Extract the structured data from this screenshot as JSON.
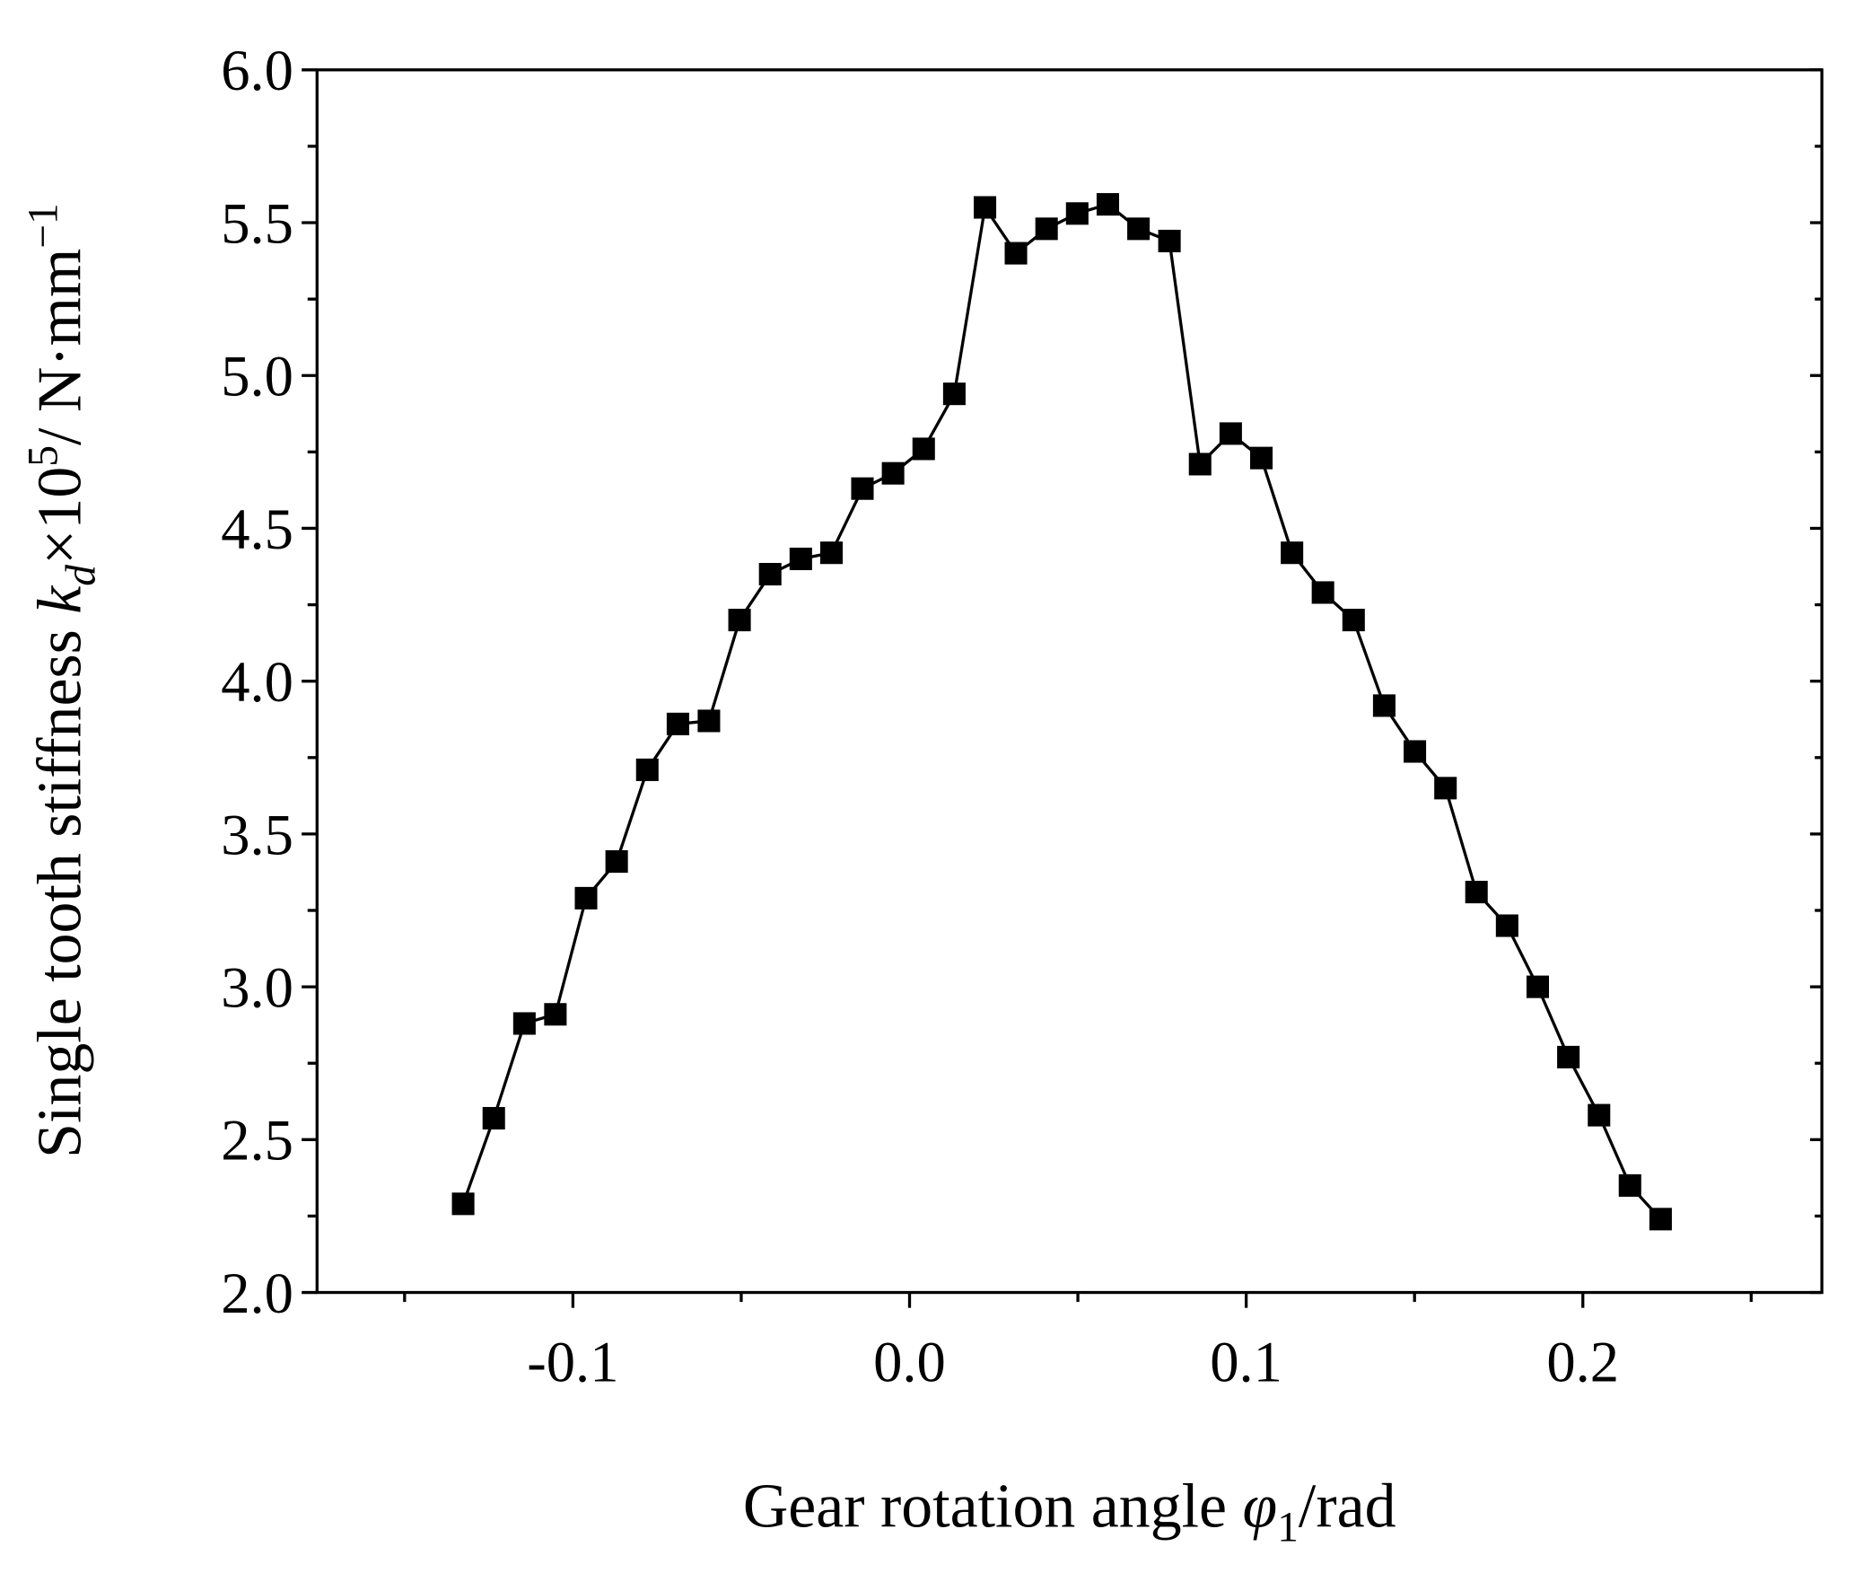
{
  "chart_data": {
    "type": "line",
    "x_label_parts": [
      "Gear rotation angle ",
      "φ",
      "1",
      "/rad"
    ],
    "y_label_parts": [
      "Single tooth stiffness ",
      "k",
      "d",
      "×10",
      "5",
      "/ N·mm",
      "−1"
    ],
    "x": [
      -0.1326,
      -0.1235,
      -0.1144,
      -0.1052,
      -0.0961,
      -0.087,
      -0.0779,
      -0.0688,
      -0.0596,
      -0.0505,
      -0.0414,
      -0.0323,
      -0.0232,
      -0.014,
      -0.0049,
      0.0042,
      0.0133,
      0.0224,
      0.0316,
      0.0407,
      0.0498,
      0.0589,
      0.068,
      0.0772,
      0.0863,
      0.0954,
      0.1045,
      0.1136,
      0.1228,
      0.1319,
      0.141,
      0.1501,
      0.1592,
      0.1684,
      0.1775,
      0.1866,
      0.1957,
      0.2048,
      0.214,
      0.2231
    ],
    "values": [
      2.29,
      2.57,
      2.88,
      2.91,
      3.29,
      3.41,
      3.71,
      3.86,
      3.87,
      4.2,
      4.35,
      4.4,
      4.42,
      4.63,
      4.68,
      4.76,
      4.94,
      5.55,
      5.4,
      5.48,
      5.53,
      5.56,
      5.48,
      5.44,
      4.71,
      4.81,
      4.73,
      4.42,
      4.29,
      4.2,
      3.92,
      3.77,
      3.65,
      3.31,
      3.2,
      3.0,
      2.77,
      2.58,
      2.35,
      2.24
    ],
    "color": "#000000",
    "marker": "square",
    "xlim": [
      -0.176,
      0.271
    ],
    "ylim": [
      2.0,
      6.0
    ],
    "xticks": [
      -0.1,
      {
        "value": 0,
        "label": "0.0"
      },
      0.1,
      0.2
    ],
    "xminorticks": [
      -0.15,
      -0.05,
      0.05,
      0.15,
      0.25
    ],
    "yticks": [
      {
        "value": 2,
        "label": "2.0"
      },
      2.5,
      {
        "value": 3,
        "label": "3.0"
      },
      3.5,
      {
        "value": 4,
        "label": "4.0"
      },
      4.5,
      {
        "value": 5,
        "label": "5.0"
      },
      5.5,
      {
        "value": 6,
        "label": "6.0"
      }
    ],
    "yminorticks": [
      2.25,
      2.75,
      3.25,
      3.75,
      4.25,
      4.75,
      5.25,
      5.75
    ]
  }
}
